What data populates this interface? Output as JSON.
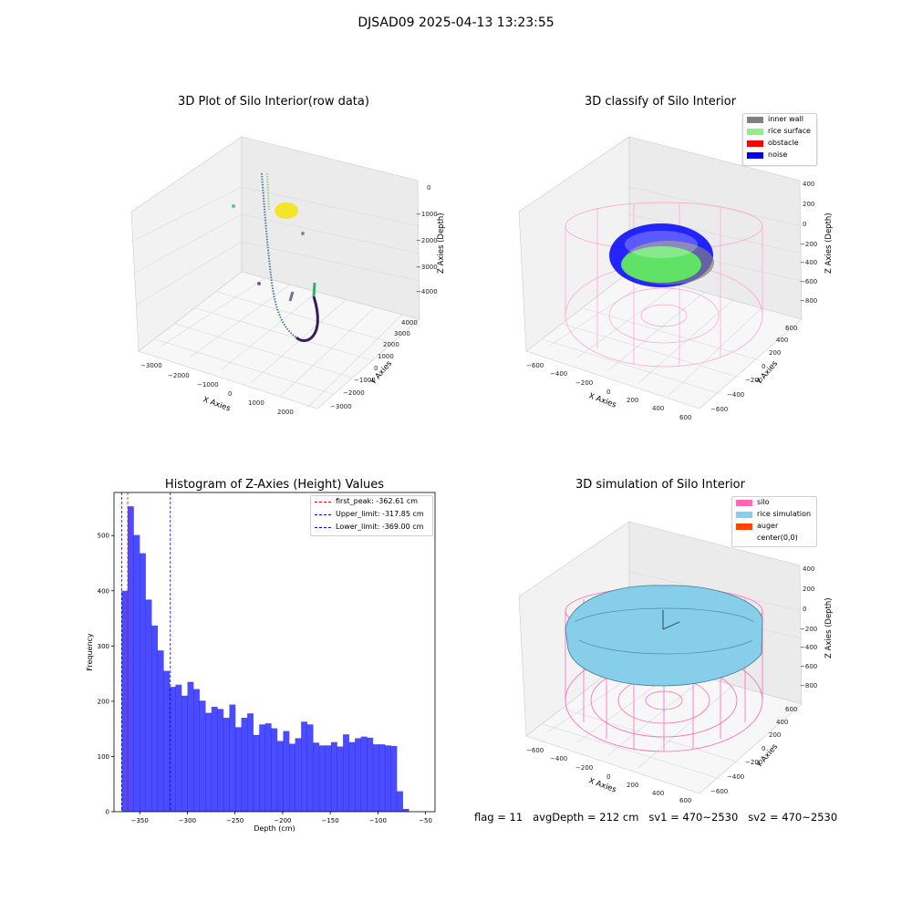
{
  "figure": {
    "suptitle": "DJSAD09 2025-04-13 13:23:55",
    "footer": "flag = 11   avgDepth = 212 cm   sv1 = 470~2530   sv2 = 470~2530"
  },
  "panels": {
    "raw": {
      "title": "3D Plot of Silo Interior(row data)",
      "xlabel": "X Axies",
      "ylabel": "Y Axies",
      "zlabel": "Z Axies (Depth)",
      "xticks": [
        "−3000",
        "−2000",
        "−1000",
        "0",
        "1000",
        "2000"
      ],
      "yticks": [
        "−3000",
        "−2000",
        "−1000",
        "0",
        "1000",
        "2000",
        "3000",
        "4000"
      ],
      "zticks": [
        "0",
        "−1000",
        "−2000",
        "−3000",
        "−4000"
      ]
    },
    "classify": {
      "title": "3D classify of Silo Interior",
      "xlabel": "X Axies",
      "ylabel": "Y Axies",
      "zlabel": "Z Axies (Depth)",
      "xticks": [
        "−600",
        "−400",
        "−200",
        "0",
        "200",
        "400",
        "600"
      ],
      "yticks": [
        "−600",
        "−400",
        "−200",
        "0",
        "200",
        "400",
        "600"
      ],
      "zticks": [
        "400",
        "200",
        "0",
        "−200",
        "−400",
        "−600",
        "−800"
      ],
      "legend": [
        {
          "label": "inner wall",
          "color": "#808080"
        },
        {
          "label": "rice surface",
          "color": "#90ee90"
        },
        {
          "label": "obstacle",
          "color": "#ff0000"
        },
        {
          "label": "noise",
          "color": "#0000ff"
        }
      ]
    },
    "simulation": {
      "title": "3D simulation of Silo Interior",
      "xlabel": "X Axies",
      "ylabel": "Y Axies",
      "zlabel": "Z Axies (Depth)",
      "xticks": [
        "−600",
        "−400",
        "−200",
        "0",
        "200",
        "400",
        "600"
      ],
      "yticks": [
        "−600",
        "−400",
        "−200",
        "0",
        "200",
        "400",
        "600"
      ],
      "zticks": [
        "400",
        "200",
        "0",
        "−200",
        "−400",
        "−600",
        "−800"
      ],
      "legend": [
        {
          "label": "silo",
          "color": "#ff69b4"
        },
        {
          "label": "rice simulation",
          "color": "#87ceeb"
        },
        {
          "label": "auger",
          "color": "#ff4500"
        },
        {
          "label": "center(0,0)",
          "color": "#ffffff"
        }
      ]
    }
  },
  "chart_data": [
    {
      "type": "bar",
      "title": "Histogram of Z-Axies (Height) Values",
      "xlabel": "Depth (cm)",
      "ylabel": "Frequency",
      "xlim": [
        -377,
        -40
      ],
      "ylim": [
        0,
        578
      ],
      "xticks": [
        "−350",
        "−300",
        "−250",
        "−200",
        "−150",
        "−100",
        "−50"
      ],
      "xtick_values": [
        -350,
        -300,
        -250,
        -200,
        -150,
        -100,
        -50
      ],
      "yticks": [
        "0",
        "100",
        "200",
        "300",
        "400",
        "500"
      ],
      "ytick_values": [
        0,
        100,
        200,
        300,
        400,
        500
      ],
      "bin_start": -369.0,
      "bin_width": 6.28,
      "color": "#0000ff",
      "values": [
        400,
        553,
        501,
        468,
        384,
        337,
        292,
        255,
        226,
        230,
        210,
        235,
        222,
        201,
        179,
        190,
        186,
        170,
        194,
        153,
        170,
        178,
        139,
        158,
        160,
        151,
        128,
        146,
        123,
        133,
        163,
        158,
        125,
        120,
        120,
        126,
        118,
        140,
        126,
        133,
        136,
        134,
        122,
        122,
        120,
        119,
        37,
        5
      ],
      "vlines": [
        {
          "label": "first_peak: -362.61 cm",
          "x": -362.61,
          "color": "#ff0000"
        },
        {
          "label": "Upper_limit: -317.85 cm",
          "x": -317.85,
          "color": "#0000ff"
        },
        {
          "label": "Lower_limit: -369.00 cm",
          "x": -369.0,
          "color": "#0000ff"
        }
      ],
      "legend_position": "top-right"
    }
  ]
}
